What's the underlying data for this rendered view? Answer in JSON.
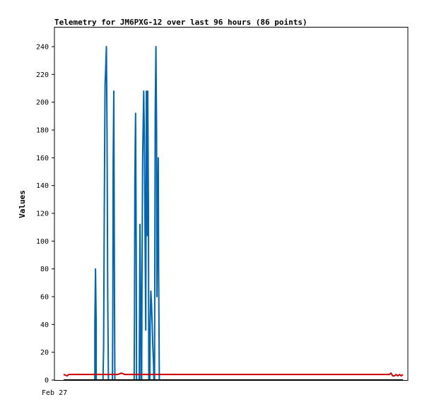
{
  "chart_data": {
    "type": "line",
    "title": "Telemetry for JM6PXG-12 over last 96 hours (86 points)",
    "ylabel": "Values",
    "xlabel": "",
    "x_tick_labels": [
      "Feb 27"
    ],
    "ylim": [
      0,
      254
    ],
    "y_ticks": [
      0,
      20,
      40,
      60,
      80,
      100,
      120,
      140,
      160,
      180,
      200,
      220,
      240
    ],
    "xlim": [
      0,
      100
    ],
    "grid": false,
    "series": [
      {
        "name": "",
        "color": "#0066b3",
        "points": [
          [
            9.2,
            0
          ],
          [
            9.2,
            40
          ],
          [
            9.4,
            80
          ],
          [
            9.6,
            40
          ],
          [
            9.6,
            0
          ],
          [
            11.6,
            0
          ],
          [
            11.8,
            24
          ],
          [
            12.0,
            128
          ],
          [
            12.2,
            212
          ],
          [
            12.4,
            224
          ],
          [
            12.6,
            240
          ],
          [
            12.8,
            180
          ],
          [
            13.0,
            60
          ],
          [
            13.2,
            0
          ],
          [
            14.4,
            0
          ],
          [
            14.5,
            52
          ],
          [
            14.6,
            156
          ],
          [
            14.8,
            208
          ],
          [
            15.0,
            52
          ],
          [
            15.1,
            0
          ],
          [
            20.8,
            0
          ],
          [
            20.9,
            48
          ],
          [
            21.0,
            144
          ],
          [
            21.2,
            192
          ],
          [
            21.4,
            96
          ],
          [
            21.5,
            0
          ],
          [
            22.3,
            0
          ],
          [
            22.5,
            112
          ],
          [
            22.7,
            56
          ],
          [
            22.8,
            0
          ],
          [
            23.0,
            0
          ],
          [
            23.1,
            72
          ],
          [
            23.3,
            160
          ],
          [
            23.5,
            192
          ],
          [
            23.6,
            208
          ],
          [
            23.8,
            176
          ],
          [
            24.0,
            104
          ],
          [
            24.2,
            36
          ],
          [
            24.4,
            208
          ],
          [
            24.6,
            104
          ],
          [
            24.8,
            208
          ],
          [
            25.0,
            124
          ],
          [
            25.1,
            0
          ],
          [
            25.4,
            0
          ],
          [
            25.5,
            40
          ],
          [
            25.7,
            64
          ],
          [
            25.9,
            56
          ],
          [
            26.1,
            40
          ],
          [
            26.3,
            24
          ],
          [
            26.5,
            12
          ],
          [
            26.6,
            0
          ],
          [
            26.8,
            0
          ],
          [
            27.0,
            192
          ],
          [
            27.2,
            240
          ],
          [
            27.4,
            180
          ],
          [
            27.5,
            60
          ],
          [
            27.7,
            120
          ],
          [
            27.9,
            160
          ],
          [
            28.0,
            80
          ],
          [
            28.2,
            0
          ]
        ]
      },
      {
        "name": "",
        "color": "#cc0000",
        "points": [
          [
            0,
            4
          ],
          [
            1,
            3
          ],
          [
            1.5,
            4
          ],
          [
            12,
            4
          ],
          [
            13,
            4
          ],
          [
            16,
            4
          ],
          [
            17,
            5
          ],
          [
            18,
            4
          ],
          [
            96,
            4
          ],
          [
            96.5,
            5
          ],
          [
            97,
            3
          ],
          [
            97.5,
            3
          ],
          [
            98,
            4
          ],
          [
            98.5,
            3
          ],
          [
            99,
            4
          ],
          [
            99.5,
            3
          ],
          [
            100,
            4
          ]
        ]
      },
      {
        "name": "",
        "color": "#000000",
        "points": [
          [
            0,
            0
          ],
          [
            100,
            0
          ]
        ]
      }
    ]
  }
}
